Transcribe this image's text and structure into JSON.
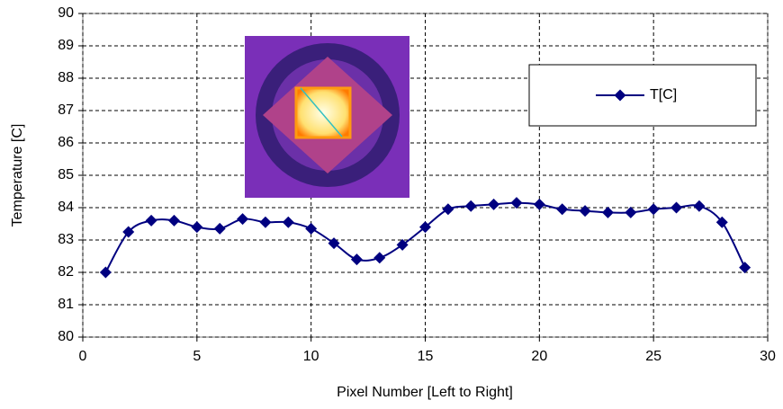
{
  "chart_data": {
    "type": "line",
    "x_label": "Pixel Number [Left to Right]",
    "y_label": "Temperature [C]",
    "x": [
      1,
      2,
      3,
      4,
      5,
      6,
      7,
      8,
      9,
      10,
      11,
      12,
      13,
      14,
      15,
      16,
      17,
      18,
      19,
      20,
      21,
      22,
      23,
      24,
      25,
      26,
      27,
      28,
      29
    ],
    "series": [
      {
        "name": "T[C]",
        "color": "#000080",
        "values": [
          82.0,
          83.25,
          83.6,
          83.6,
          83.4,
          83.35,
          83.65,
          83.55,
          83.55,
          83.35,
          82.9,
          82.4,
          82.45,
          82.85,
          83.4,
          83.95,
          84.05,
          84.1,
          84.15,
          84.1,
          83.95,
          83.9,
          83.85,
          83.85,
          83.95,
          84.0,
          84.05,
          83.55,
          82.15
        ]
      }
    ],
    "xlim": [
      0,
      30
    ],
    "xticks": [
      0,
      5,
      10,
      15,
      20,
      25,
      30
    ],
    "ylim": [
      80,
      90
    ],
    "yticks": [
      80,
      81,
      82,
      83,
      84,
      85,
      86,
      87,
      88,
      89,
      90
    ],
    "grid": true,
    "legend": "upper right"
  }
}
